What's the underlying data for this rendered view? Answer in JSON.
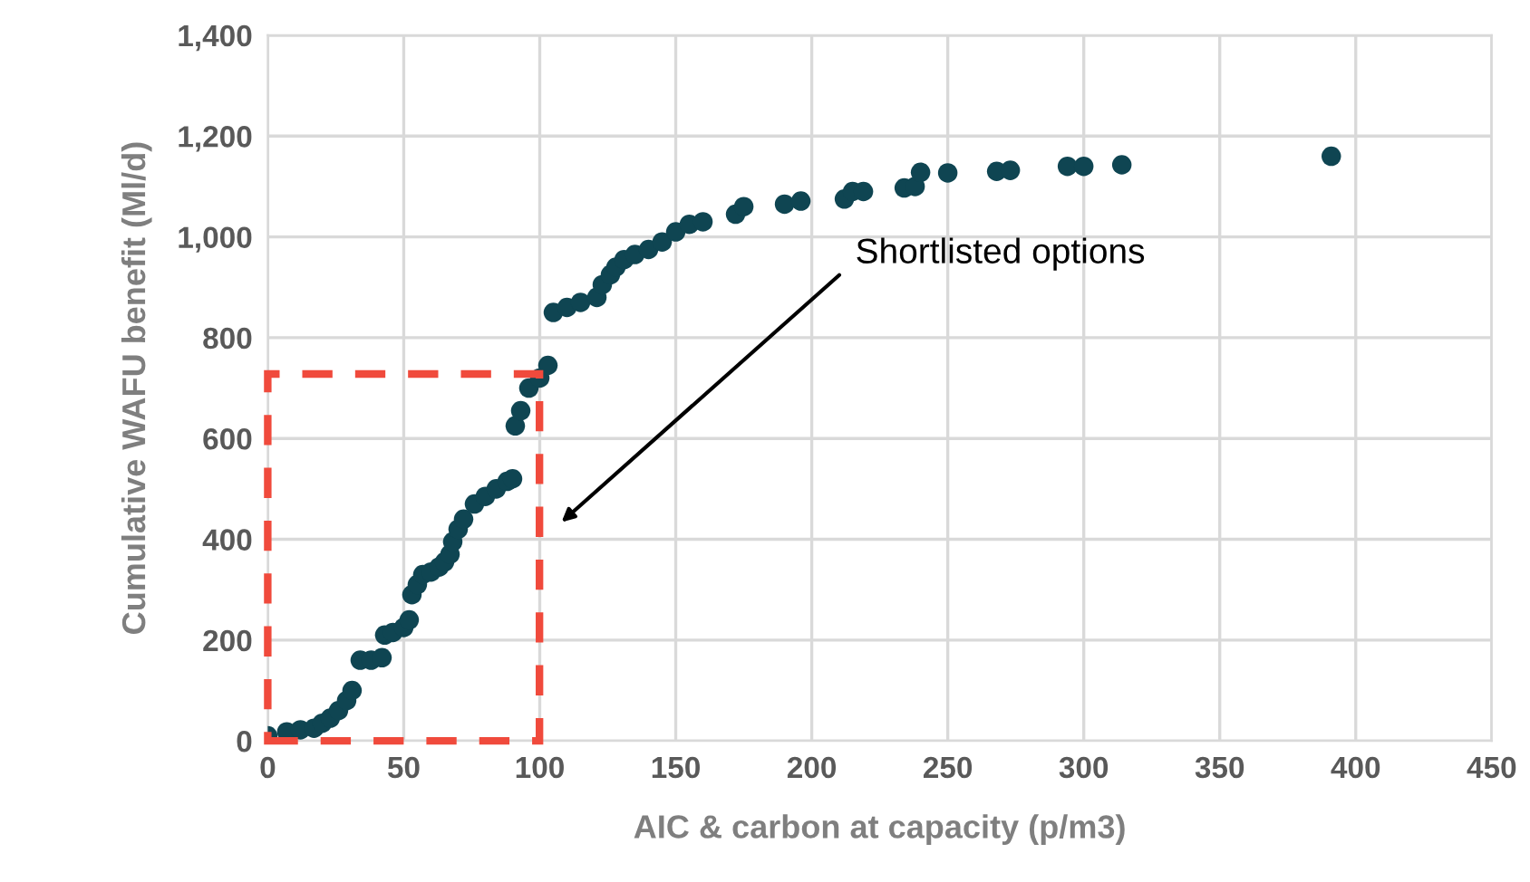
{
  "chart_data": {
    "type": "scatter",
    "xlabel": "AIC & carbon at capacity (p/m3)",
    "ylabel": "Cumulative WAFU benefit (Ml/d)",
    "x": [
      0,
      7,
      12,
      17,
      20,
      23,
      26,
      29,
      31,
      34,
      38,
      42,
      43,
      46,
      50,
      52,
      53,
      55,
      57,
      60,
      63,
      65,
      67,
      68,
      70,
      72,
      76,
      80,
      84,
      88,
      90,
      91,
      93,
      96,
      100,
      103,
      105,
      110,
      115,
      121,
      123,
      126,
      128,
      131,
      135,
      140,
      145,
      150,
      155,
      160,
      172,
      175,
      190,
      196,
      212,
      215,
      219,
      234,
      238,
      240,
      250,
      268,
      273,
      294,
      300,
      314,
      391
    ],
    "values": [
      10,
      18,
      22,
      25,
      35,
      45,
      60,
      80,
      100,
      160,
      160,
      165,
      210,
      215,
      225,
      240,
      290,
      310,
      330,
      335,
      345,
      355,
      370,
      395,
      420,
      440,
      470,
      485,
      500,
      515,
      520,
      625,
      655,
      700,
      720,
      745,
      850,
      860,
      870,
      880,
      905,
      925,
      940,
      955,
      965,
      975,
      990,
      1010,
      1025,
      1030,
      1045,
      1060,
      1065,
      1071,
      1075,
      1090,
      1090,
      1097,
      1100,
      1128,
      1127,
      1130,
      1132,
      1140,
      1140,
      1143,
      1160
    ],
    "color": "#0f4552",
    "marker": "circle",
    "xlim": [
      0,
      450
    ],
    "xticks": [
      0,
      50,
      100,
      150,
      200,
      250,
      300,
      350,
      400,
      450
    ],
    "ylim": [
      0,
      1400
    ],
    "yticks": [
      {
        "value": 0,
        "label": "0"
      },
      {
        "value": 200,
        "label": "200"
      },
      {
        "value": 400,
        "label": "400"
      },
      {
        "value": 600,
        "label": "600"
      },
      {
        "value": 800,
        "label": "800"
      },
      {
        "value": 1000,
        "label": "1,000"
      },
      {
        "value": 1200,
        "label": "1,200"
      },
      {
        "value": 1400,
        "label": "1,400"
      }
    ],
    "grid": true,
    "annotations": [
      "Shortlisted options"
    ]
  }
}
